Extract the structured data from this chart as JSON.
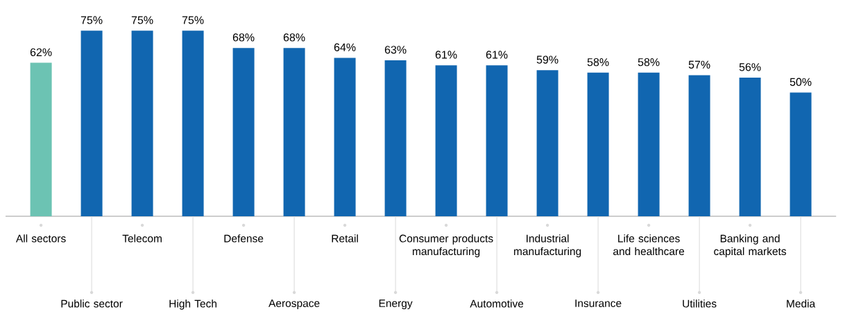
{
  "chart_data": {
    "type": "bar",
    "categories": [
      "All sectors",
      "Public sector",
      "Telecom",
      "High Tech",
      "Defense",
      "Aerospace",
      "Retail",
      "Energy",
      "Consumer products manufacturing",
      "Automotive",
      "Industrial manufacturing",
      "Insurance",
      "Life sciences and healthcare",
      "Utilities",
      "Banking and capital markets",
      "Media"
    ],
    "values": [
      62,
      75,
      75,
      75,
      68,
      68,
      64,
      63,
      61,
      61,
      59,
      58,
      58,
      57,
      56,
      50
    ],
    "value_labels": [
      "62%",
      "75%",
      "75%",
      "75%",
      "68%",
      "68%",
      "64%",
      "63%",
      "61%",
      "61%",
      "59%",
      "58%",
      "58%",
      "57%",
      "56%",
      "50%"
    ],
    "colors": [
      "#6cc3b3",
      "#1166b0",
      "#1166b0",
      "#1166b0",
      "#1166b0",
      "#1166b0",
      "#1166b0",
      "#1166b0",
      "#1166b0",
      "#1166b0",
      "#1166b0",
      "#1166b0",
      "#1166b0",
      "#1166b0",
      "#1166b0",
      "#1166b0"
    ],
    "stacked": false
  }
}
